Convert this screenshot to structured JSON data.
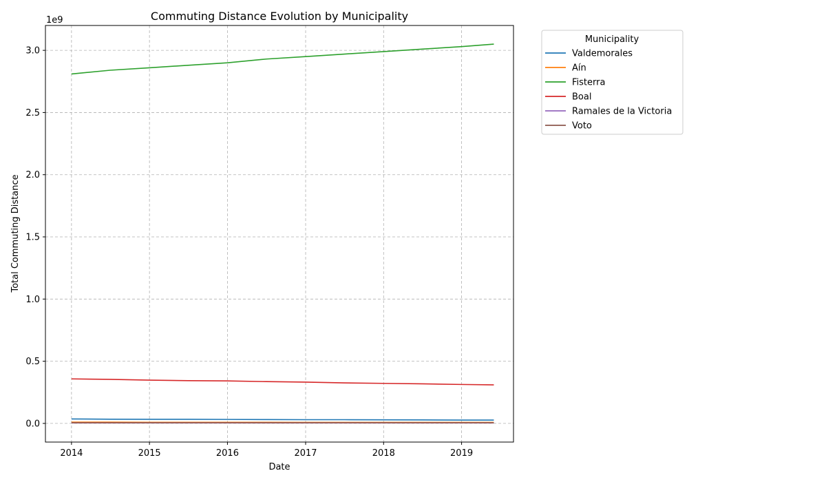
{
  "chart_data": {
    "type": "line",
    "title": "Commuting Distance Evolution by Municipality",
    "xlabel": "Date",
    "ylabel": "Total Commuting Distance",
    "y_multiplier_label": "1e9",
    "x_axis_type": "date",
    "xlim": [
      "2013-09-01",
      "2019-09-01"
    ],
    "ylim": [
      -0.15,
      3.2
    ],
    "y_unit": "1e9",
    "xticks": [
      "2014",
      "2015",
      "2016",
      "2017",
      "2018",
      "2019"
    ],
    "yticks": [
      0.0,
      0.5,
      1.0,
      1.5,
      2.0,
      2.5,
      3.0
    ],
    "ytick_labels": [
      "0.0",
      "0.5",
      "1.0",
      "1.5",
      "2.0",
      "2.5",
      "3.0"
    ],
    "grid": true,
    "legend": {
      "title": "Municipality",
      "placement": "outside-right-top"
    },
    "x": [
      "2014-01-01",
      "2014-07-01",
      "2015-01-01",
      "2015-07-01",
      "2016-01-01",
      "2016-07-01",
      "2017-01-01",
      "2017-07-01",
      "2018-01-01",
      "2018-07-01",
      "2019-01-01",
      "2019-06-01"
    ],
    "series": [
      {
        "name": "Valdemorales",
        "color": "#1f77b4",
        "values": [
          0.036,
          0.034,
          0.033,
          0.033,
          0.032,
          0.031,
          0.03,
          0.03,
          0.029,
          0.028,
          0.027,
          0.027
        ]
      },
      {
        "name": "Aín",
        "color": "#ff7f0e",
        "values": [
          0.01,
          0.01,
          0.009,
          0.009,
          0.009,
          0.009,
          0.008,
          0.008,
          0.008,
          0.008,
          0.008,
          0.008
        ]
      },
      {
        "name": "Fisterra",
        "color": "#2ca02c",
        "values": [
          2.81,
          2.84,
          2.86,
          2.88,
          2.9,
          2.93,
          2.95,
          2.97,
          2.99,
          3.01,
          3.03,
          3.05
        ]
      },
      {
        "name": "Boal",
        "color": "#d62728",
        "values": [
          0.358,
          0.354,
          0.348,
          0.344,
          0.342,
          0.336,
          0.332,
          0.326,
          0.322,
          0.318,
          0.313,
          0.31
        ]
      },
      {
        "name": "Ramales de la Victoria",
        "color": "#9467bd",
        "values": [
          0.004,
          0.004,
          0.004,
          0.004,
          0.004,
          0.004,
          0.004,
          0.004,
          0.004,
          0.004,
          0.004,
          0.004
        ]
      },
      {
        "name": "Voto",
        "color": "#8c564b",
        "values": [
          0.005,
          0.005,
          0.005,
          0.005,
          0.005,
          0.005,
          0.005,
          0.005,
          0.005,
          0.005,
          0.005,
          0.005
        ]
      }
    ]
  }
}
